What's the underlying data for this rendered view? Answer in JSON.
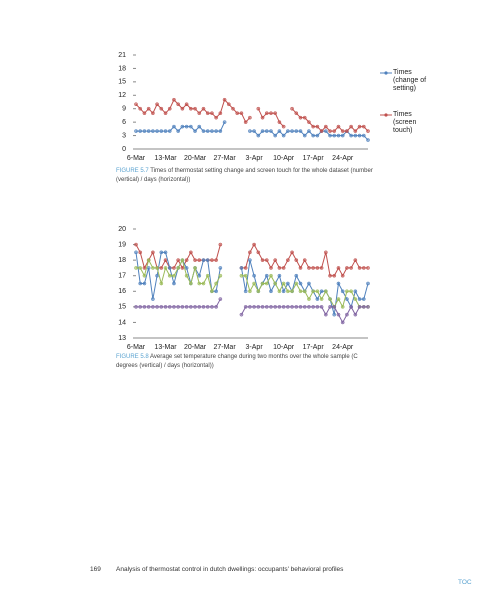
{
  "chart_data": [
    {
      "type": "line",
      "figure_label": "FIGURE 5.7",
      "caption": "Times of thermostat setting change and screen touch for the whole dataset (number (vertical) / days (horizontal))",
      "categories": [
        "6-Mar",
        null,
        null,
        null,
        null,
        null,
        null,
        "13-Mar",
        null,
        null,
        null,
        null,
        null,
        null,
        "20-Mar",
        null,
        null,
        null,
        null,
        null,
        null,
        "27-Mar",
        null,
        null,
        null,
        null,
        null,
        null,
        "3-Apr",
        null,
        null,
        null,
        null,
        null,
        null,
        "10-Apr",
        null,
        null,
        null,
        null,
        null,
        null,
        "17-Apr",
        null,
        null,
        null,
        null,
        null,
        null,
        "24-Apr",
        null,
        null,
        null,
        null,
        null,
        null
      ],
      "ylim": [
        0,
        21
      ],
      "yticks": [
        0,
        3,
        6,
        9,
        12,
        15,
        18,
        21
      ],
      "grid": false,
      "legend": "right",
      "series": [
        {
          "name": "Times (change of setting)",
          "color": "#4f81bd",
          "values": [
            4,
            4,
            4,
            4,
            4,
            4,
            4,
            4,
            4,
            5,
            4,
            5,
            5,
            5,
            4,
            5,
            4,
            4,
            4,
            4,
            4,
            6,
            null,
            null,
            null,
            null,
            null,
            4,
            4,
            3,
            4,
            4,
            4,
            3,
            4,
            3,
            4,
            4,
            4,
            4,
            3,
            4,
            3,
            3,
            4,
            4,
            3,
            3,
            3,
            3,
            4,
            3,
            3,
            3,
            3,
            2
          ]
        },
        {
          "name": "Times (screen touch)",
          "color": "#c0504d",
          "values": [
            10,
            9,
            8,
            9,
            8,
            10,
            9,
            8,
            9,
            11,
            10,
            9,
            10,
            9,
            9,
            8,
            9,
            8,
            8,
            7,
            8,
            11,
            10,
            9,
            8,
            8,
            6,
            7,
            null,
            9,
            7,
            8,
            8,
            8,
            6,
            5,
            null,
            9,
            8,
            7,
            7,
            6,
            5,
            5,
            4,
            5,
            4,
            4,
            5,
            4,
            4,
            5,
            4,
            5,
            5,
            4
          ]
        }
      ]
    },
    {
      "type": "line",
      "figure_label": "FIGURE 5.8",
      "caption": "Average set temperature change during two months over the whole sample (C degrees (vertical) / days (horizontal))",
      "categories": [
        "6-Mar",
        null,
        null,
        null,
        null,
        null,
        null,
        "13-Mar",
        null,
        null,
        null,
        null,
        null,
        null,
        "20-Mar",
        null,
        null,
        null,
        null,
        null,
        null,
        "27-Mar",
        null,
        null,
        null,
        null,
        null,
        null,
        "3-Apr",
        null,
        null,
        null,
        null,
        null,
        null,
        "10-Apr",
        null,
        null,
        null,
        null,
        null,
        null,
        "17-Apr",
        null,
        null,
        null,
        null,
        null,
        null,
        "24-Apr",
        null,
        null,
        null,
        null,
        null,
        null
      ],
      "ylim": [
        13,
        20
      ],
      "yticks": [
        13,
        14,
        15,
        16,
        17,
        18,
        19,
        20
      ],
      "grid": false,
      "series": [
        {
          "color": "#c0504d",
          "values": [
            19,
            18.5,
            17.5,
            18,
            18.5,
            17.5,
            17.5,
            18,
            17.5,
            17.5,
            18,
            17.5,
            18,
            18.5,
            18,
            18,
            18,
            18,
            18,
            18,
            19,
            null,
            null,
            null,
            null,
            17.5,
            17.5,
            18.5,
            19,
            18.5,
            18,
            18,
            17.5,
            18,
            17.5,
            17.5,
            18,
            18.5,
            18,
            17.5,
            18,
            17.5,
            17.5,
            17.5,
            17.5,
            18.5,
            17,
            17,
            17.5,
            17,
            17.5,
            17.5,
            18,
            17.5,
            17.5,
            17.5
          ]
        },
        {
          "color": "#4f81bd",
          "values": [
            18.5,
            16.5,
            16.5,
            17.5,
            15.5,
            17,
            18.5,
            18.5,
            17.5,
            16.5,
            17.5,
            18,
            17.5,
            16.5,
            17.5,
            17,
            18,
            18,
            16,
            16,
            17.5,
            null,
            null,
            null,
            null,
            17.5,
            16,
            18,
            17,
            16,
            16.5,
            17,
            16,
            16.5,
            17,
            16,
            16.5,
            16,
            17,
            16.5,
            16,
            16.5,
            16,
            15.5,
            16,
            16,
            15.5,
            14.5,
            16.5,
            16,
            15.5,
            15,
            16,
            15.5,
            15.5,
            16.5
          ]
        },
        {
          "color": "#9bbb59",
          "values": [
            17.5,
            17.5,
            17,
            18,
            17.5,
            17.5,
            16.5,
            17.5,
            17,
            17,
            17.5,
            18,
            17,
            16.5,
            17.5,
            16.5,
            16.5,
            17,
            16,
            16.5,
            17,
            null,
            null,
            null,
            null,
            17,
            17,
            16,
            16.5,
            16,
            16.5,
            16.5,
            17,
            16.5,
            16,
            16.5,
            16,
            16,
            16.5,
            16,
            16,
            15.5,
            16,
            16,
            15.5,
            16,
            15.5,
            15,
            15.5,
            15,
            16,
            16,
            15.5,
            15,
            15,
            15
          ]
        },
        {
          "color": "#8064a2",
          "values": [
            15,
            15,
            15,
            15,
            15,
            15,
            15,
            15,
            15,
            15,
            15,
            15,
            15,
            15,
            15,
            15,
            15,
            15,
            15,
            15,
            15.5,
            null,
            null,
            null,
            null,
            14.5,
            15,
            15,
            15,
            15,
            15,
            15,
            15,
            15,
            15,
            15,
            15,
            15,
            15,
            15,
            15,
            15,
            15,
            15,
            15,
            14.5,
            15,
            15,
            14.5,
            14,
            14.5,
            15,
            14.5,
            15,
            15,
            15
          ]
        }
      ]
    }
  ],
  "footer": {
    "page": "169",
    "title": "Analysis of thermostat control in dutch dwellings: occupants' behavioral profiles",
    "toc": "TOC"
  }
}
